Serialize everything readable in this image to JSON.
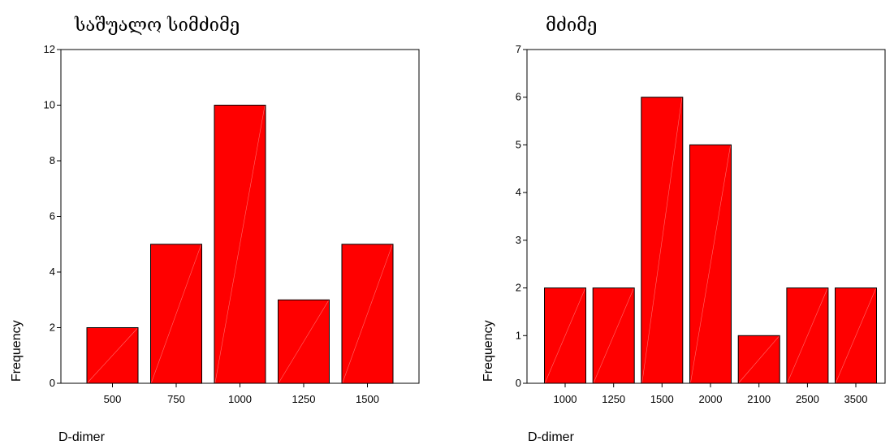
{
  "chart_data": [
    {
      "type": "bar",
      "title": "საშუალო სიმძიმე",
      "xlabel": "D-dimer",
      "ylabel": "Frequency",
      "categories": [
        "500",
        "750",
        "1000",
        "1250",
        "1500"
      ],
      "values": [
        2,
        5,
        10,
        3,
        5
      ],
      "ylim": [
        0,
        12
      ],
      "yticks": [
        "0",
        "2",
        "4",
        "6",
        "8",
        "10",
        "12"
      ],
      "bar_color": "#ff0000",
      "grid": false
    },
    {
      "type": "bar",
      "title": "მძიმე",
      "xlabel": "D-dimer",
      "ylabel": "Frequency",
      "categories": [
        "1000",
        "1250",
        "1500",
        "2000",
        "2100",
        "2500",
        "3500"
      ],
      "values": [
        2,
        2,
        6,
        5,
        1,
        2,
        2
      ],
      "ylim": [
        0,
        7
      ],
      "yticks": [
        "0",
        "1",
        "2",
        "3",
        "4",
        "5",
        "6",
        "7"
      ],
      "bar_color": "#ff0000",
      "grid": false
    }
  ]
}
